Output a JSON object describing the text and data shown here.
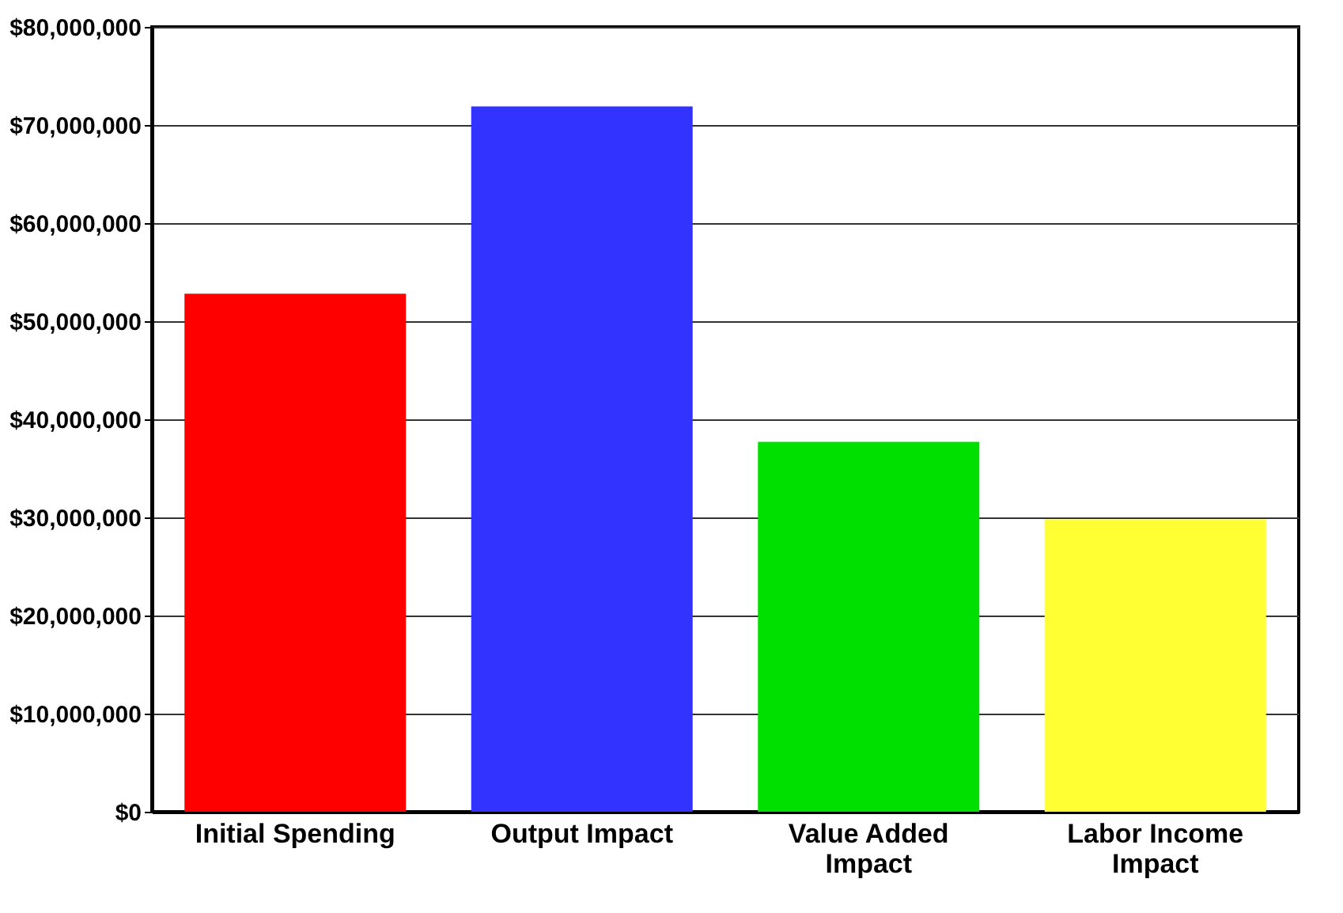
{
  "chart_data": {
    "type": "bar",
    "categories": [
      "Initial Spending",
      "Output Impact",
      "Value Added Impact",
      "Labor Income Impact"
    ],
    "values": [
      52800000,
      71900000,
      37700000,
      29800000
    ],
    "colors": [
      "#ff0000",
      "#3333ff",
      "#00e000",
      "#ffff33"
    ],
    "ylim": [
      0,
      80000000
    ],
    "yticks": [
      {
        "value": 0,
        "label": "$0"
      },
      {
        "value": 10000000,
        "label": "$10,000,000"
      },
      {
        "value": 20000000,
        "label": "$20,000,000"
      },
      {
        "value": 30000000,
        "label": "$30,000,000"
      },
      {
        "value": 40000000,
        "label": "$40,000,000"
      },
      {
        "value": 50000000,
        "label": "$50,000,000"
      },
      {
        "value": 60000000,
        "label": "$60,000,000"
      },
      {
        "value": 70000000,
        "label": "$70,000,000"
      },
      {
        "value": 80000000,
        "label": "$80,000,000"
      }
    ],
    "grid": "y"
  }
}
